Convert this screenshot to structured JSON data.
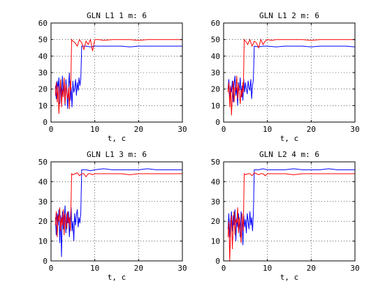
{
  "figure": {
    "background": "#ffffff",
    "series_colors": [
      "#0000ff",
      "#ff0000"
    ]
  },
  "chart_data": [
    {
      "type": "line",
      "title": "GLN L1  1 m: 6",
      "xlabel": "t, c",
      "ylabel": "",
      "xlim": [
        0,
        30
      ],
      "ylim": [
        0,
        60
      ],
      "xticks": [
        0,
        10,
        20,
        30
      ],
      "xtick_labels": [
        "0",
        "10",
        "20",
        "30"
      ],
      "yticks": [
        0,
        10,
        20,
        30,
        40,
        50,
        60
      ],
      "ytick_labels": [
        "0",
        "10",
        "20",
        "30",
        "40",
        "50",
        "60"
      ],
      "grid": true,
      "series": [
        {
          "color": "#0000ff",
          "x": [
            1.0,
            1.2,
            1.4,
            1.6,
            1.8,
            2.0,
            2.2,
            2.4,
            2.6,
            2.8,
            3.0,
            3.2,
            3.4,
            3.6,
            3.8,
            4.0,
            4.2,
            4.4,
            4.6,
            4.8,
            5.0,
            5.2,
            5.4,
            5.6,
            5.8,
            6.0,
            6.2,
            6.4,
            6.6,
            6.8,
            7.0,
            8,
            9,
            10,
            12,
            14,
            16,
            18,
            20,
            22,
            24,
            26,
            28,
            30
          ],
          "y": [
            22,
            14,
            25,
            20,
            27,
            11,
            24,
            15,
            28,
            18,
            23,
            10,
            26,
            19,
            8,
            22,
            30,
            13,
            21,
            9,
            25,
            18,
            20,
            26,
            16,
            24,
            19,
            27,
            22,
            26,
            46,
            46,
            45.5,
            46,
            46,
            46,
            46,
            45.5,
            46,
            46,
            46,
            46,
            46,
            46
          ]
        },
        {
          "color": "#ff0000",
          "x": [
            1.0,
            1.2,
            1.4,
            1.6,
            1.8,
            2.0,
            2.2,
            2.4,
            2.6,
            2.8,
            3.0,
            3.2,
            3.4,
            3.6,
            3.8,
            4.0,
            4.2,
            4.4,
            4.5,
            4.7,
            5.0,
            5.5,
            6,
            6.5,
            7,
            7.5,
            8,
            8.5,
            9,
            9.5,
            10,
            11,
            12,
            14,
            16,
            18,
            20,
            22,
            24,
            26,
            28,
            30
          ],
          "y": [
            16,
            24,
            12,
            22,
            5,
            18,
            26,
            9,
            20,
            15,
            27,
            11,
            23,
            17,
            14,
            21,
            8,
            25,
            19,
            50,
            49,
            48,
            46,
            50,
            48,
            44,
            49,
            47,
            50,
            43,
            50,
            50,
            49.5,
            50,
            50,
            50,
            49.5,
            50,
            50,
            50,
            50,
            50
          ]
        }
      ]
    },
    {
      "type": "line",
      "title": "GLN L1  2 m: 6",
      "xlabel": "t, c",
      "ylabel": "",
      "xlim": [
        0,
        30
      ],
      "ylim": [
        0,
        60
      ],
      "xticks": [
        0,
        10,
        20,
        30
      ],
      "xtick_labels": [
        "0",
        "10",
        "20",
        "30"
      ],
      "yticks": [
        0,
        10,
        20,
        30,
        40,
        50,
        60
      ],
      "ytick_labels": [
        "0",
        "10",
        "20",
        "30",
        "40",
        "50",
        "60"
      ],
      "grid": true,
      "series": [
        {
          "color": "#0000ff",
          "x": [
            1.0,
            1.2,
            1.4,
            1.6,
            1.8,
            2.0,
            2.2,
            2.4,
            2.6,
            2.8,
            3.0,
            3.2,
            3.4,
            3.6,
            3.8,
            4.0,
            4.2,
            4.4,
            4.6,
            4.8,
            5.0,
            5.2,
            5.4,
            5.6,
            5.8,
            6.0,
            6.2,
            6.4,
            6.6,
            6.8,
            7.0,
            8,
            9,
            10,
            12,
            14,
            16,
            18,
            20,
            22,
            24,
            26,
            28,
            30
          ],
          "y": [
            20,
            26,
            14,
            22,
            18,
            25,
            12,
            23,
            28,
            16,
            21,
            10,
            24,
            19,
            27,
            15,
            22,
            13,
            26,
            18,
            24,
            20,
            17,
            25,
            21,
            19,
            26,
            14,
            22,
            26,
            46,
            45.5,
            46,
            46,
            45.5,
            46,
            46,
            46,
            45.5,
            46,
            46,
            46,
            46,
            45.5
          ]
        },
        {
          "color": "#ff0000",
          "x": [
            1.0,
            1.2,
            1.4,
            1.6,
            1.8,
            2.0,
            2.2,
            2.4,
            2.6,
            2.8,
            3.0,
            3.2,
            3.4,
            3.6,
            3.8,
            4.0,
            4.2,
            4.4,
            4.5,
            4.7,
            5.0,
            5.5,
            6,
            6.5,
            7,
            7.5,
            8,
            8.5,
            9,
            9.5,
            10,
            11,
            12,
            14,
            16,
            18,
            20,
            22,
            24,
            26,
            28,
            30
          ],
          "y": [
            18,
            24,
            9,
            22,
            4,
            16,
            25,
            12,
            21,
            19,
            28,
            14,
            23,
            17,
            11,
            20,
            15,
            24,
            18,
            50,
            49,
            47,
            50,
            46,
            49,
            48,
            45,
            50,
            47,
            49,
            50,
            49.5,
            50,
            50,
            50,
            50,
            49.5,
            50,
            50,
            50,
            50,
            50
          ]
        }
      ]
    },
    {
      "type": "line",
      "title": "GLN L1  3 m: 6",
      "xlabel": "t, c",
      "ylabel": "",
      "xlim": [
        0,
        30
      ],
      "ylim": [
        0,
        50
      ],
      "xticks": [
        0,
        10,
        20,
        30
      ],
      "xtick_labels": [
        "0",
        "10",
        "20",
        "30"
      ],
      "yticks": [
        0,
        10,
        20,
        30,
        40,
        50
      ],
      "ytick_labels": [
        "0",
        "10",
        "20",
        "30",
        "40",
        "50"
      ],
      "grid": true,
      "series": [
        {
          "color": "#0000ff",
          "x": [
            1.0,
            1.2,
            1.4,
            1.6,
            1.8,
            2.0,
            2.2,
            2.4,
            2.6,
            2.8,
            3.0,
            3.2,
            3.4,
            3.6,
            3.8,
            4.0,
            4.2,
            4.4,
            4.6,
            4.8,
            5.0,
            5.2,
            5.4,
            5.6,
            5.8,
            6.0,
            6.2,
            6.4,
            6.6,
            6.8,
            7.0,
            8,
            9,
            10,
            12,
            14,
            16,
            18,
            20,
            22,
            24,
            26,
            28,
            30
          ],
          "y": [
            22,
            13,
            24,
            18,
            26,
            9,
            23,
            2,
            25,
            16,
            21,
            28,
            14,
            24,
            19,
            25,
            12,
            22,
            27,
            15,
            20,
            10,
            24,
            18,
            23,
            26,
            17,
            22,
            19,
            24,
            46,
            46,
            45.5,
            46,
            46.5,
            46,
            46,
            46,
            46,
            46.5,
            46,
            46,
            46,
            46
          ]
        },
        {
          "color": "#ff0000",
          "x": [
            1.0,
            1.2,
            1.4,
            1.6,
            1.8,
            2.0,
            2.2,
            2.4,
            2.6,
            2.8,
            3.0,
            3.2,
            3.4,
            3.6,
            3.8,
            4.0,
            4.2,
            4.4,
            4.5,
            4.7,
            5.0,
            5.5,
            6,
            6.5,
            7,
            7.5,
            8,
            8.5,
            9,
            9.5,
            10,
            11,
            12,
            14,
            16,
            18,
            20,
            22,
            24,
            26,
            28,
            30
          ],
          "y": [
            18,
            25,
            12,
            23,
            20,
            27,
            15,
            22,
            18,
            26,
            13,
            24,
            20,
            16,
            25,
            19,
            22,
            15,
            21,
            44,
            43.5,
            44,
            44.5,
            43,
            44,
            44,
            42.5,
            44,
            44,
            43.5,
            44,
            44,
            44,
            44,
            44,
            43.5,
            44,
            44,
            44,
            44,
            44,
            44
          ]
        }
      ]
    },
    {
      "type": "line",
      "title": "GLN L2  4 m: 6",
      "xlabel": "t, c",
      "ylabel": "",
      "xlim": [
        0,
        30
      ],
      "ylim": [
        0,
        50
      ],
      "xticks": [
        0,
        10,
        20,
        30
      ],
      "xtick_labels": [
        "0",
        "10",
        "20",
        "30"
      ],
      "yticks": [
        0,
        10,
        20,
        30,
        40,
        50
      ],
      "ytick_labels": [
        "0",
        "10",
        "20",
        "30",
        "40",
        "50"
      ],
      "grid": true,
      "series": [
        {
          "color": "#0000ff",
          "x": [
            1.0,
            1.2,
            1.4,
            1.6,
            1.8,
            2.0,
            2.2,
            2.4,
            2.6,
            2.8,
            3.0,
            3.2,
            3.4,
            3.6,
            3.8,
            4.0,
            4.2,
            4.4,
            4.6,
            4.8,
            5.0,
            5.2,
            5.4,
            5.6,
            5.8,
            6.0,
            6.2,
            6.4,
            6.6,
            6.8,
            7.0,
            8,
            9,
            10,
            12,
            14,
            16,
            18,
            20,
            22,
            24,
            26,
            28,
            30
          ],
          "y": [
            16,
            24,
            12,
            20,
            25,
            15,
            23,
            18,
            26,
            10,
            22,
            17,
            24,
            19,
            12,
            25,
            20,
            8,
            23,
            17,
            21,
            14,
            24,
            20,
            16,
            25,
            18,
            22,
            15,
            24,
            46,
            46,
            46.5,
            46,
            46,
            46,
            46.5,
            46,
            46,
            46,
            46.5,
            46,
            46,
            46
          ]
        },
        {
          "color": "#ff0000",
          "x": [
            1.0,
            1.2,
            1.4,
            1.6,
            1.8,
            2.0,
            2.2,
            2.4,
            2.6,
            2.8,
            3.0,
            3.2,
            3.4,
            3.6,
            3.8,
            4.0,
            4.2,
            4.4,
            4.5,
            4.7,
            5.0,
            5.5,
            6,
            6.5,
            7,
            7.5,
            8,
            8.5,
            9,
            9.5,
            10,
            11,
            12,
            14,
            16,
            18,
            20,
            22,
            24,
            26,
            28,
            30
          ],
          "y": [
            12,
            20,
            0,
            16,
            23,
            6,
            18,
            25,
            13,
            21,
            19,
            27,
            14,
            22,
            17,
            9,
            24,
            18,
            15,
            44,
            43.5,
            44,
            44,
            43,
            44.5,
            44,
            43.5,
            44,
            44,
            43,
            44,
            44,
            44,
            44,
            43.5,
            44,
            44,
            44,
            44,
            44,
            44,
            44
          ]
        }
      ]
    }
  ]
}
